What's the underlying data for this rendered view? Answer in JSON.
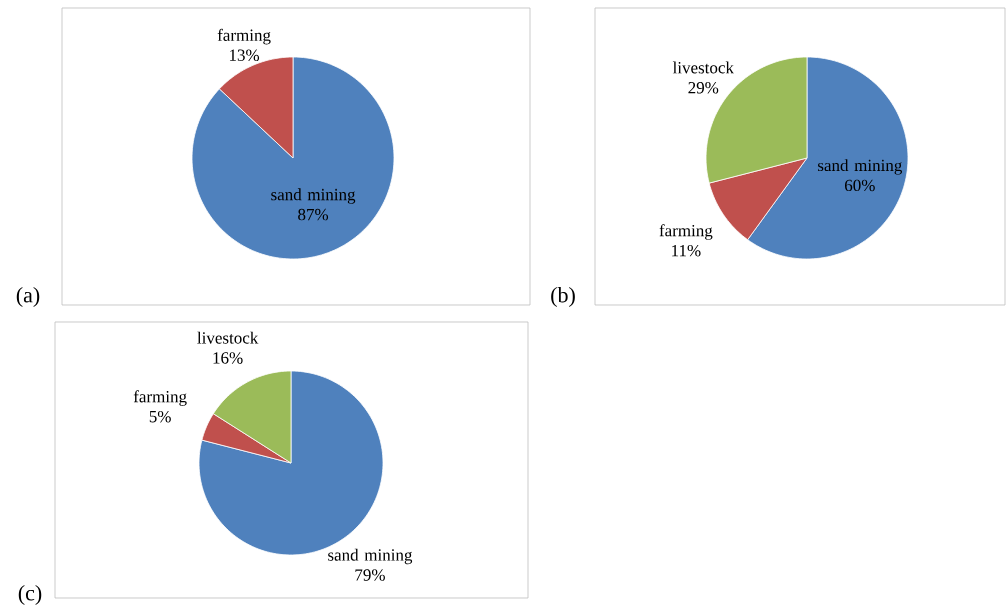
{
  "chart_data": [
    {
      "type": "pie",
      "title": "(a)",
      "categories": [
        "sand mining",
        "farming"
      ],
      "values": [
        87,
        13
      ],
      "value_labels": [
        "87%",
        "13%"
      ],
      "colors": [
        "#4f81bd",
        "#c0504d"
      ]
    },
    {
      "type": "pie",
      "title": "(b)",
      "categories": [
        "sand mining",
        "farming",
        "livestock"
      ],
      "values": [
        60,
        11,
        29
      ],
      "value_labels": [
        "60%",
        "11%",
        "29%"
      ],
      "colors": [
        "#4f81bd",
        "#c0504d",
        "#9bbb59"
      ]
    },
    {
      "type": "pie",
      "title": "(c)",
      "categories": [
        "sand mining",
        "farming",
        "livestock"
      ],
      "values": [
        79,
        5,
        16
      ],
      "value_labels": [
        "79%",
        "5%",
        "16%"
      ],
      "colors": [
        "#4f81bd",
        "#c0504d",
        "#9bbb59"
      ]
    }
  ]
}
